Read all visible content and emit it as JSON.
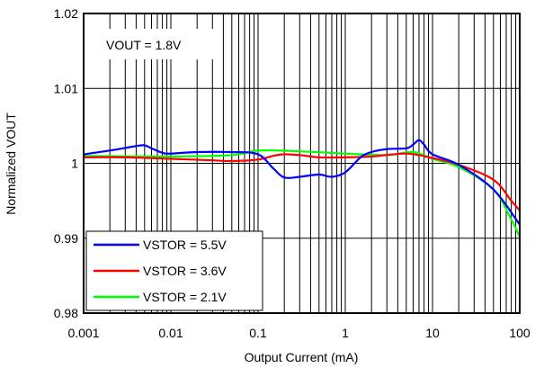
{
  "chart_data": {
    "type": "line",
    "xlabel": "Output Current (mA)",
    "ylabel": "Normalized VOUT",
    "xscale": "log",
    "xlim": [
      0.001,
      100
    ],
    "ylim": [
      0.98,
      1.02
    ],
    "x_ticks": [
      0.001,
      0.01,
      0.1,
      1,
      10,
      100
    ],
    "x_tick_labels": [
      "0.001",
      "0.01",
      "0.1",
      "1",
      "10",
      "100"
    ],
    "y_ticks": [
      0.98,
      0.99,
      1,
      1.01,
      1.02
    ],
    "y_tick_labels": [
      "0.98",
      "0.99",
      "1",
      "1.01",
      "1.02"
    ],
    "grid": "major and minor vertical (log), major horizontal",
    "annotation": "VOUT = 1.8V",
    "legend_position": "bottom-left",
    "series": [
      {
        "name": "VSTOR = 5.5V",
        "color": "#0000ff",
        "x": [
          0.001,
          0.002,
          0.004,
          0.005,
          0.006,
          0.008,
          0.01,
          0.02,
          0.05,
          0.1,
          0.15,
          0.2,
          0.3,
          0.5,
          0.7,
          1,
          1.5,
          2,
          3,
          5,
          6,
          7,
          8,
          10,
          20,
          50,
          100
        ],
        "y": [
          1.0012,
          1.0017,
          1.0023,
          1.0024,
          1.002,
          1.0014,
          1.0013,
          1.0015,
          1.0015,
          1.0012,
          0.9993,
          0.9981,
          0.9982,
          0.9985,
          0.9982,
          0.9988,
          1.0008,
          1.0015,
          1.0019,
          1.002,
          1.0025,
          1.0031,
          1.0025,
          1.0012,
          0.9998,
          0.9965,
          0.9918
        ]
      },
      {
        "name": "VSTOR = 3.6V",
        "color": "#ff0000",
        "x": [
          0.001,
          0.003,
          0.01,
          0.03,
          0.05,
          0.1,
          0.15,
          0.2,
          0.3,
          0.5,
          1,
          2,
          5,
          10,
          20,
          50,
          80,
          100
        ],
        "y": [
          1.0008,
          1.0008,
          1.0006,
          1.0004,
          1.0003,
          1.0005,
          1.001,
          1.0012,
          1.0011,
          1.0008,
          1.0008,
          1.0009,
          1.0013,
          1.0007,
          0.9998,
          0.9978,
          0.995,
          0.9937
        ]
      },
      {
        "name": "VSTOR = 2.1V",
        "color": "#00ff00",
        "x": [
          0.001,
          0.01,
          0.05,
          0.1,
          0.3,
          1,
          3,
          6,
          10,
          20,
          50,
          80,
          100
        ],
        "y": [
          1.001,
          1.0009,
          1.0011,
          1.0017,
          1.0016,
          1.0013,
          1.0011,
          1.0015,
          1.0006,
          0.9995,
          0.9965,
          0.9925,
          0.9902
        ]
      }
    ]
  }
}
